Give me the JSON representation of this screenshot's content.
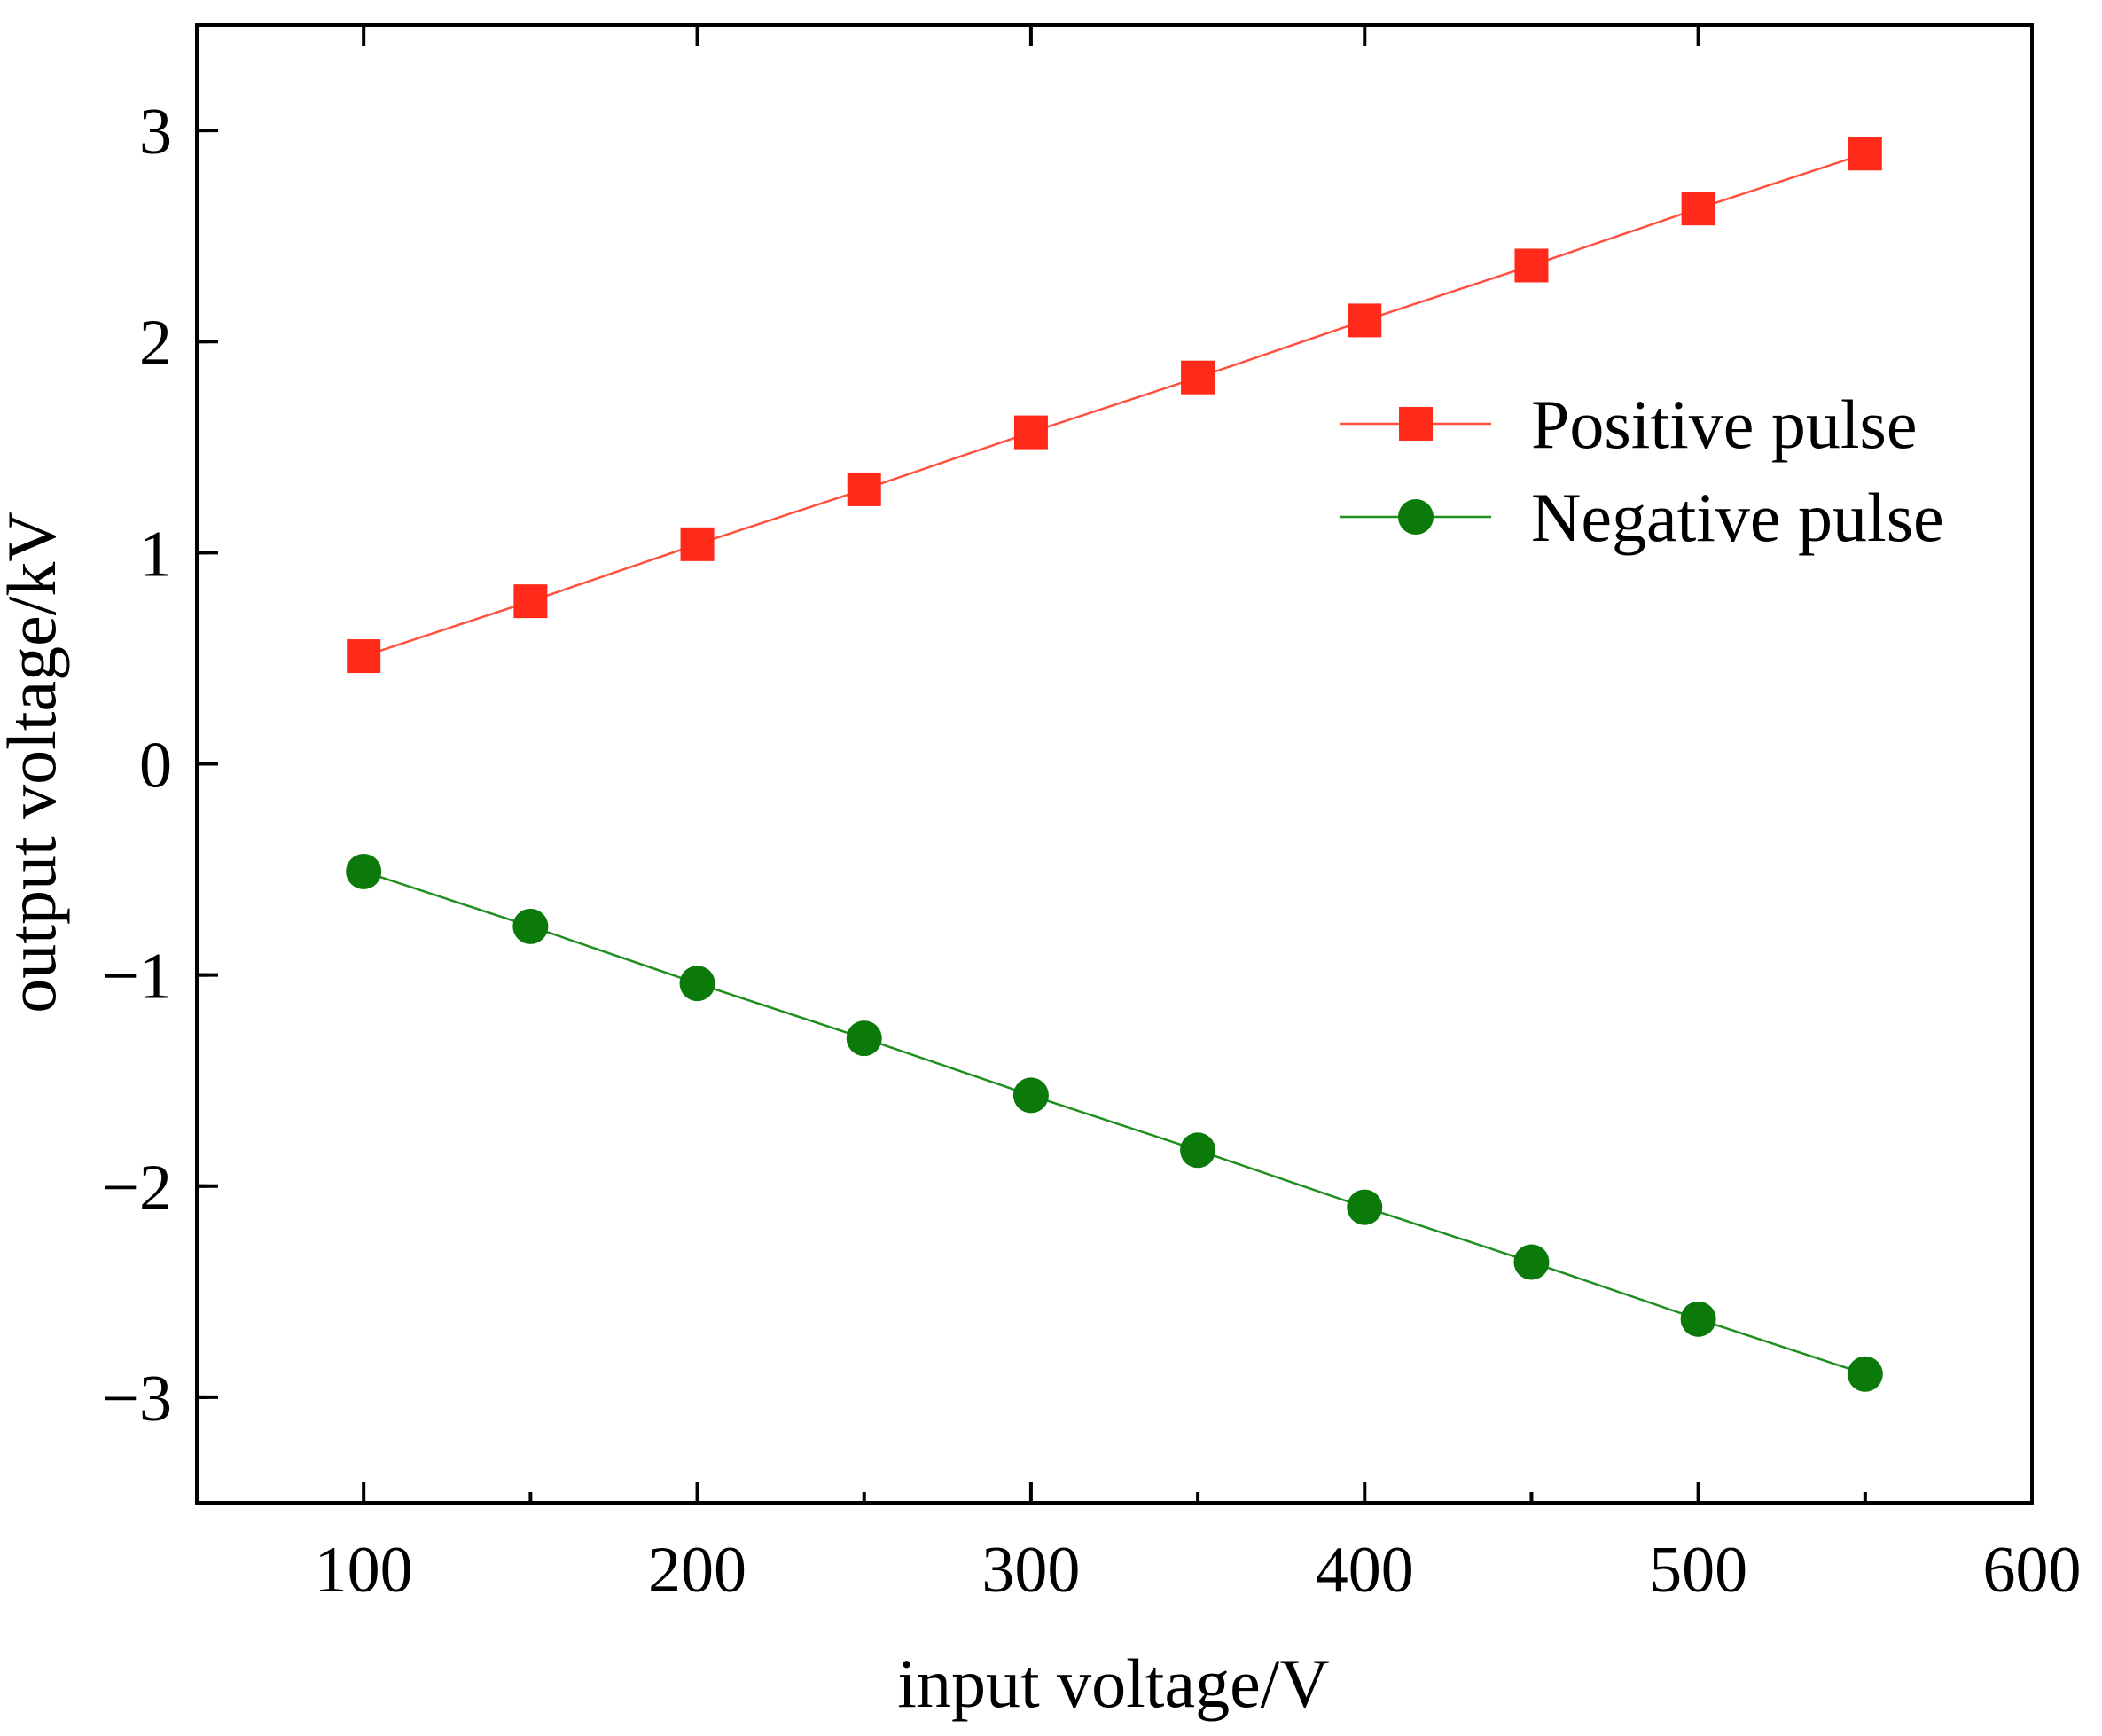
{
  "chart_data": {
    "type": "line",
    "title": "",
    "xlabel": "input voltage/V",
    "ylabel": "output voltage/kV",
    "xlim": [
      50,
      600
    ],
    "ylim": [
      -3.5,
      3.5
    ],
    "x_ticks": [
      100,
      200,
      300,
      400,
      500,
      600
    ],
    "x_tick_labels": [
      "100",
      "200",
      "300",
      "400",
      "500",
      "600"
    ],
    "y_ticks": [
      -3,
      -2,
      -1,
      0,
      1,
      2,
      3
    ],
    "y_tick_labels": [
      "−3",
      "−2",
      "−1",
      "0",
      "1",
      "2",
      "3"
    ],
    "grid": false,
    "legend_position": "right",
    "x": [
      100,
      150,
      200,
      250,
      300,
      350,
      400,
      450,
      500,
      550
    ],
    "series": [
      {
        "name": "Positive pulse",
        "marker": "square",
        "color": "#ff2a1a",
        "line_color": "#ff5040",
        "values": [
          0.51,
          0.77,
          1.04,
          1.3,
          1.57,
          1.83,
          2.1,
          2.36,
          2.63,
          2.89
        ]
      },
      {
        "name": "Negative pulse",
        "marker": "circle",
        "color": "#0b7a0b",
        "line_color": "#1f8f1f",
        "values": [
          -0.51,
          -0.77,
          -1.04,
          -1.3,
          -1.57,
          -1.83,
          -2.1,
          -2.36,
          -2.63,
          -2.89
        ]
      }
    ]
  }
}
